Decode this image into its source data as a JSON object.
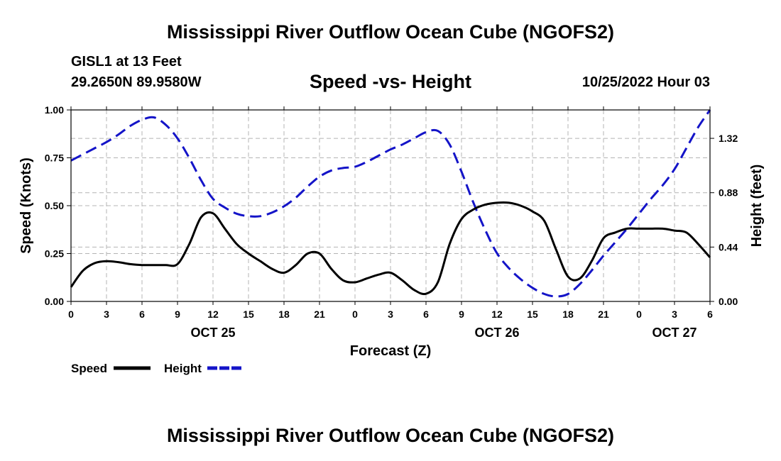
{
  "header": {
    "main_title": "Mississippi River Outflow Ocean Cube (NGOFS2)",
    "station": "GISL1 at 13 Feet",
    "coords": "29.2650N  89.9580W",
    "chart_title": "Speed -vs- Height",
    "datetime": "10/25/2022 Hour 03"
  },
  "footer": {
    "repeat_title": "Mississippi River Outflow Ocean Cube (NGOFS2)"
  },
  "chart_data": {
    "type": "line",
    "title": "Speed -vs- Height",
    "xlabel": "Forecast (Z)",
    "ylabel": "Speed (Knots)",
    "y2label": "Height (feet)",
    "ylim": [
      0,
      1.0
    ],
    "y2lim": [
      0,
      1.55
    ],
    "xlim": [
      0,
      54
    ],
    "x_tick_positions": [
      0,
      3,
      6,
      9,
      12,
      15,
      18,
      21,
      24,
      27,
      30,
      33,
      36,
      39,
      42,
      45,
      48,
      51,
      54
    ],
    "x_tick_labels": [
      "0",
      "3",
      "6",
      "9",
      "12",
      "15",
      "18",
      "21",
      "0",
      "3",
      "6",
      "9",
      "12",
      "15",
      "18",
      "21",
      "0",
      "3",
      "6"
    ],
    "date_labels": [
      {
        "x": 12,
        "label": "OCT 25"
      },
      {
        "x": 36,
        "label": "OCT 26"
      },
      {
        "x": 51,
        "label": "OCT 27"
      }
    ],
    "y_ticks": [
      {
        "value": 0.0,
        "label": "0.00"
      },
      {
        "value": 0.25,
        "label": "0.25"
      },
      {
        "value": 0.5,
        "label": "0.50"
      },
      {
        "value": 0.75,
        "label": "0.75"
      },
      {
        "value": 1.0,
        "label": "1.00"
      }
    ],
    "y2_ticks": [
      {
        "value": 0.0,
        "label": "0.00"
      },
      {
        "value": 0.44,
        "label": "0.44"
      },
      {
        "value": 0.88,
        "label": "0.88"
      },
      {
        "value": 1.32,
        "label": "1.32"
      }
    ],
    "grid": true,
    "series": [
      {
        "name": "Speed",
        "axis": "left",
        "color": "#000000",
        "style": "solid",
        "x": [
          0,
          1,
          2,
          3,
          4,
          5,
          6,
          7,
          8,
          9,
          10,
          11,
          12,
          13,
          14,
          15,
          16,
          17,
          18,
          19,
          20,
          21,
          22,
          23,
          24,
          25,
          26,
          27,
          28,
          29,
          30,
          31,
          32,
          33,
          34,
          35,
          36,
          37,
          38,
          39,
          40,
          41,
          42,
          43,
          44,
          45,
          46,
          47,
          48,
          49,
          50,
          51,
          52,
          53,
          54
        ],
        "values": [
          0.075,
          0.16,
          0.2,
          0.21,
          0.205,
          0.195,
          0.19,
          0.19,
          0.19,
          0.195,
          0.3,
          0.44,
          0.46,
          0.38,
          0.3,
          0.25,
          0.21,
          0.17,
          0.15,
          0.19,
          0.25,
          0.25,
          0.17,
          0.11,
          0.1,
          0.12,
          0.14,
          0.15,
          0.11,
          0.06,
          0.04,
          0.1,
          0.3,
          0.43,
          0.48,
          0.505,
          0.515,
          0.515,
          0.5,
          0.47,
          0.42,
          0.27,
          0.13,
          0.12,
          0.21,
          0.33,
          0.36,
          0.38,
          0.38,
          0.38,
          0.38,
          0.37,
          0.36,
          0.3,
          0.23
        ]
      },
      {
        "name": "Height",
        "axis": "right",
        "color": "#1414c8",
        "style": "dashed",
        "x": [
          0,
          1,
          2,
          3,
          4,
          5,
          6,
          7,
          8,
          9,
          10,
          11,
          12,
          13,
          14,
          15,
          16,
          17,
          18,
          19,
          20,
          21,
          22,
          23,
          24,
          25,
          26,
          27,
          28,
          29,
          30,
          31,
          32,
          33,
          34,
          35,
          36,
          37,
          38,
          39,
          40,
          41,
          42,
          43,
          44,
          45,
          46,
          47,
          48,
          49,
          50,
          51,
          52,
          53,
          54
        ],
        "values": [
          1.14,
          1.19,
          1.24,
          1.29,
          1.35,
          1.42,
          1.47,
          1.49,
          1.43,
          1.32,
          1.16,
          0.98,
          0.83,
          0.76,
          0.71,
          0.69,
          0.69,
          0.72,
          0.77,
          0.84,
          0.93,
          1.01,
          1.06,
          1.08,
          1.09,
          1.13,
          1.18,
          1.23,
          1.27,
          1.32,
          1.37,
          1.38,
          1.27,
          1.05,
          0.8,
          0.58,
          0.39,
          0.27,
          0.18,
          0.11,
          0.06,
          0.04,
          0.06,
          0.14,
          0.25,
          0.37,
          0.48,
          0.59,
          0.71,
          0.83,
          0.94,
          1.07,
          1.24,
          1.41,
          1.57
        ]
      }
    ],
    "legend": [
      {
        "name": "Speed",
        "color": "#000000",
        "style": "solid"
      },
      {
        "name": "Height",
        "color": "#1414c8",
        "style": "dashed"
      }
    ],
    "legend_placement": "bottom-left"
  }
}
